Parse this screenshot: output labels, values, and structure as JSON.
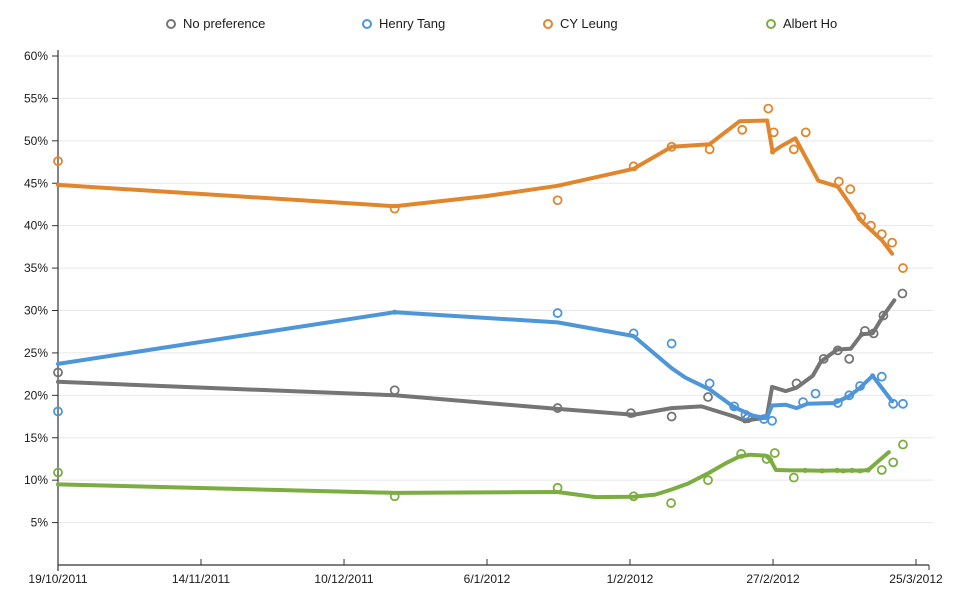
{
  "legend": [
    {
      "label": "No preference",
      "color": "#757575"
    },
    {
      "label": "Henry Tang",
      "color": "#4E96DA"
    },
    {
      "label": "CY Leung",
      "color": "#E1862C"
    },
    {
      "label": "Albert Ho",
      "color": "#7BAD41"
    }
  ],
  "chart_data": {
    "type": "line",
    "title": "",
    "xlabel": "",
    "ylabel": "",
    "legend_position": "top",
    "grid": true,
    "x_axis": {
      "unit": "date",
      "ticks": [
        {
          "label": "19/10/2011",
          "d": 0
        },
        {
          "label": "14/11/2011",
          "d": 26.33
        },
        {
          "label": "10/12/2011",
          "d": 52.67
        },
        {
          "label": "6/1/2012",
          "d": 79
        },
        {
          "label": "1/2/2012",
          "d": 105.33
        },
        {
          "label": "27/2/2012",
          "d": 131.67
        },
        {
          "label": "25/3/2012",
          "d": 158
        }
      ],
      "range_days": [
        0,
        158
      ]
    },
    "y_axis": {
      "min": 0,
      "max": 60,
      "step": 5,
      "tick_labels": [
        "5%",
        "10%",
        "15%",
        "20%",
        "25%",
        "30%",
        "35%",
        "40%",
        "45%",
        "50%",
        "55%",
        "60%"
      ]
    },
    "series": [
      {
        "name": "No preference",
        "color": "#757575",
        "points": [
          [
            0,
            22.7
          ],
          [
            62,
            20.6
          ],
          [
            92,
            18.5
          ],
          [
            105.5,
            17.9
          ],
          [
            113,
            17.5
          ],
          [
            119.7,
            19.8
          ],
          [
            127,
            17.3
          ],
          [
            136,
            21.4
          ],
          [
            141,
            24.3
          ],
          [
            143.6,
            25.3
          ],
          [
            145.7,
            24.3
          ],
          [
            148.6,
            27.6
          ],
          [
            150.2,
            27.3
          ],
          [
            152,
            29.4
          ],
          [
            155.5,
            32
          ]
        ],
        "trend": [
          [
            0,
            21.6
          ],
          [
            62,
            20
          ],
          [
            92,
            18.4
          ],
          [
            106,
            17.7
          ],
          [
            113,
            18.5
          ],
          [
            118.5,
            18.7
          ],
          [
            124.5,
            17.5
          ],
          [
            126.5,
            17
          ],
          [
            130.5,
            17.4
          ],
          [
            131.5,
            21
          ],
          [
            134,
            20.5
          ],
          [
            136,
            20.9
          ],
          [
            139,
            22.3
          ],
          [
            140.5,
            24
          ],
          [
            143.5,
            25.4
          ],
          [
            146,
            25.5
          ],
          [
            148,
            27.2
          ],
          [
            150,
            27.3
          ],
          [
            152,
            29.4
          ],
          [
            154,
            31.2
          ]
        ],
        "trend_dots": [
          [
            106,
            17.7
          ],
          [
            126.5,
            17
          ],
          [
            148,
            27.2
          ]
        ]
      },
      {
        "name": "Henry Tang",
        "color": "#4E96DA",
        "points": [
          [
            0,
            18.1
          ],
          [
            92,
            29.7
          ],
          [
            106,
            27.3
          ],
          [
            113,
            26.1
          ],
          [
            120,
            21.4
          ],
          [
            124.5,
            18.7
          ],
          [
            126.6,
            17.7
          ],
          [
            130,
            17.2
          ],
          [
            131.5,
            17
          ],
          [
            137.2,
            19.2
          ],
          [
            139.5,
            20.2
          ],
          [
            143.6,
            19.1
          ],
          [
            145.7,
            20
          ],
          [
            147.7,
            21.1
          ],
          [
            151.7,
            22.2
          ],
          [
            153.8,
            19
          ],
          [
            155.6,
            19
          ]
        ],
        "trend": [
          [
            0,
            23.7
          ],
          [
            62,
            29.8
          ],
          [
            92,
            28.6
          ],
          [
            106,
            27
          ],
          [
            113,
            23.2
          ],
          [
            115.5,
            22.1
          ],
          [
            120,
            20.7
          ],
          [
            124.5,
            18.6
          ],
          [
            128,
            17.6
          ],
          [
            130.5,
            17.3
          ],
          [
            131.5,
            18.8
          ],
          [
            134,
            18.9
          ],
          [
            136,
            18.5
          ],
          [
            138,
            19
          ],
          [
            143,
            19.1
          ],
          [
            145.7,
            19.9
          ],
          [
            147.7,
            20.9
          ],
          [
            150,
            22.3
          ],
          [
            153.6,
            19.3
          ]
        ],
        "trend_dots": [
          [
            62,
            29.8
          ],
          [
            124.5,
            18.6
          ],
          [
            150,
            22.3
          ]
        ]
      },
      {
        "name": "CY Leung",
        "color": "#E1862C",
        "points": [
          [
            0,
            47.6
          ],
          [
            62,
            42
          ],
          [
            92,
            43
          ],
          [
            106,
            47
          ],
          [
            113,
            49.3
          ],
          [
            120,
            49
          ],
          [
            126,
            51.3
          ],
          [
            130.8,
            53.8
          ],
          [
            131.8,
            51
          ],
          [
            135.5,
            49
          ],
          [
            137.7,
            51
          ],
          [
            143.8,
            45.2
          ],
          [
            145.9,
            44.3
          ],
          [
            147.9,
            41
          ],
          [
            149.7,
            40
          ],
          [
            151.7,
            39
          ],
          [
            153.6,
            38
          ],
          [
            155.6,
            35
          ]
        ],
        "trend": [
          [
            0,
            44.8
          ],
          [
            62,
            42.3
          ],
          [
            79,
            43.5
          ],
          [
            92,
            44.7
          ],
          [
            106,
            46.7
          ],
          [
            113,
            49.3
          ],
          [
            120,
            49.6
          ],
          [
            125.5,
            52.3
          ],
          [
            130.6,
            52.4
          ],
          [
            131.6,
            48.7
          ],
          [
            133,
            49.3
          ],
          [
            135.8,
            50.3
          ],
          [
            140,
            45.3
          ],
          [
            143.6,
            44.6
          ],
          [
            148,
            40.5
          ],
          [
            151.7,
            38.3
          ],
          [
            153.6,
            36.7
          ]
        ],
        "trend_dots": [
          [
            131.6,
            48.7
          ]
        ]
      },
      {
        "name": "Albert Ho",
        "color": "#7BAD41",
        "points": [
          [
            0,
            10.9
          ],
          [
            62,
            8.1
          ],
          [
            92,
            9.1
          ],
          [
            106,
            8.1
          ],
          [
            112.9,
            7.3
          ],
          [
            119.7,
            10
          ],
          [
            125.8,
            13.1
          ],
          [
            130.5,
            12.5
          ],
          [
            132,
            13.2
          ],
          [
            135.5,
            10.3
          ],
          [
            151.7,
            11.2
          ],
          [
            153.8,
            12.1
          ],
          [
            155.6,
            14.2
          ]
        ],
        "trend": [
          [
            0,
            9.5
          ],
          [
            62,
            8.5
          ],
          [
            92,
            8.6
          ],
          [
            99,
            8
          ],
          [
            106,
            8.05
          ],
          [
            110,
            8.3
          ],
          [
            113,
            8.9
          ],
          [
            116,
            9.6
          ],
          [
            120,
            10.9
          ],
          [
            123,
            12
          ],
          [
            125.5,
            12.8
          ],
          [
            127.5,
            13
          ],
          [
            130.3,
            12.9
          ],
          [
            131.2,
            12.4
          ],
          [
            132.2,
            11.2
          ],
          [
            135,
            11.15
          ],
          [
            137.6,
            11.15
          ],
          [
            140.7,
            11.1
          ],
          [
            143.5,
            11.15
          ],
          [
            144.6,
            11.1
          ],
          [
            146.2,
            11.15
          ],
          [
            147.7,
            11.1
          ],
          [
            149.2,
            11.2
          ],
          [
            151,
            12.2
          ],
          [
            153,
            13.3
          ]
        ],
        "trend_dots": [
          [
            131.2,
            12.4
          ],
          [
            137.6,
            11.15
          ],
          [
            140.7,
            11.1
          ],
          [
            143.5,
            11.15
          ],
          [
            144.6,
            11.1
          ],
          [
            146.2,
            11.15
          ],
          [
            147.7,
            11.1
          ],
          [
            149.2,
            11.2
          ]
        ]
      }
    ]
  }
}
